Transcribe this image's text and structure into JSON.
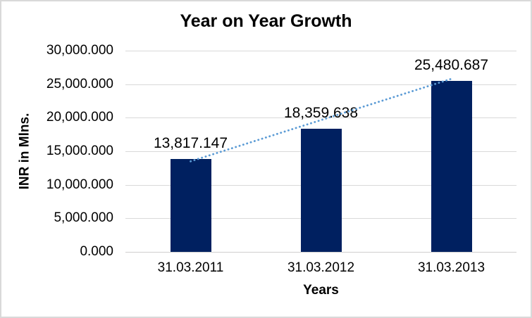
{
  "chart_data": {
    "type": "bar",
    "title": "Year on Year Growth",
    "xlabel": "Years",
    "ylabel": "INR in Mlns.",
    "categories": [
      "31.03.2011",
      "31.03.2012",
      "31.03.2013"
    ],
    "values": [
      13817.147,
      18359.638,
      25480.687
    ],
    "value_labels": [
      "13,817.147",
      "18,359.638",
      "25,480.687"
    ],
    "ylim": [
      0,
      30000
    ],
    "ytick_step": 5000,
    "ytick_labels": [
      "0.000",
      "5,000.000",
      "10,000.000",
      "15,000.000",
      "20,000.000",
      "25,000.000",
      "30,000.000"
    ],
    "grid": true,
    "legend": false,
    "trendline": {
      "type": "linear",
      "style": "dotted"
    },
    "colors": {
      "bar": "#002060",
      "trendline": "#5B9BD5",
      "gridline": "#D9D9D9",
      "axis_line": "#D0CECE",
      "text": "#000000",
      "background": "#FFFFFF",
      "border": "#D9D9D9"
    }
  }
}
